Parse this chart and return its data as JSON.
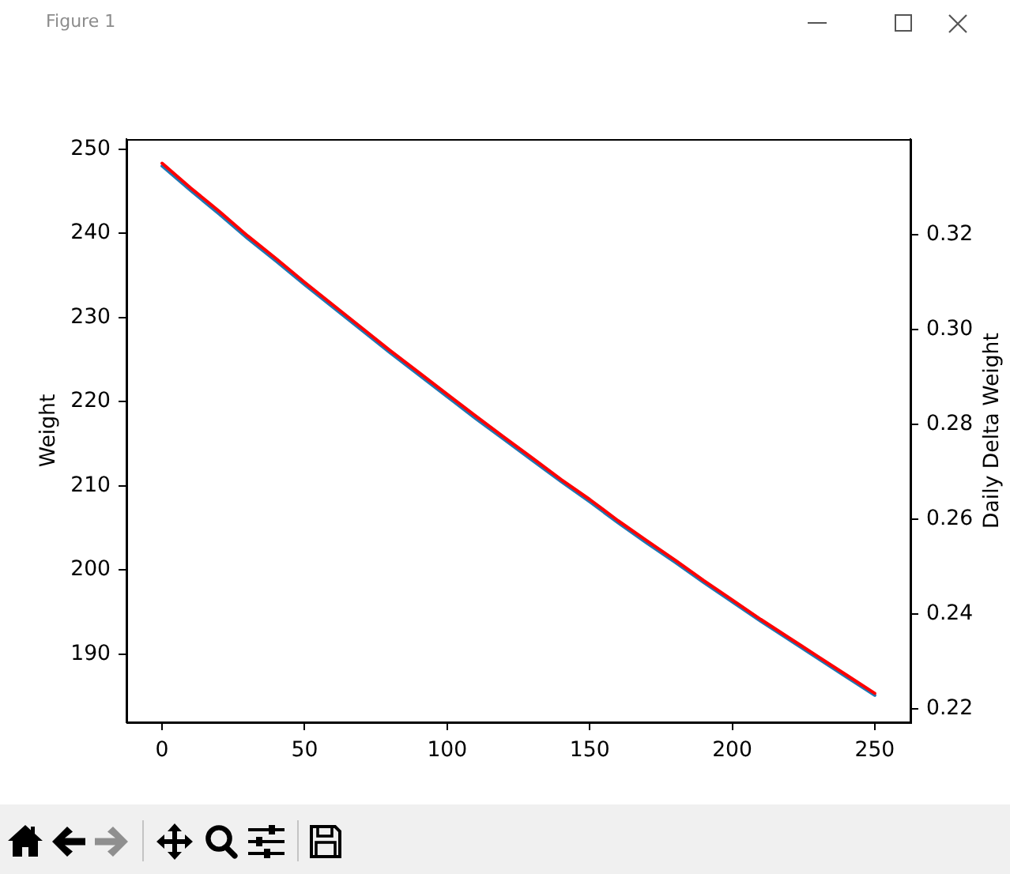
{
  "chart_data": {
    "type": "line",
    "ylabel": "Weight",
    "y2label": "Daily Delta Weight",
    "annotations": [
      "Figure 1"
    ],
    "x": [
      0,
      10,
      20,
      30,
      40,
      50,
      60,
      70,
      80,
      90,
      100,
      110,
      120,
      130,
      140,
      150,
      160,
      170,
      180,
      190,
      200,
      210,
      220,
      230,
      240,
      250
    ],
    "xlim": [
      -12.5,
      262.5
    ],
    "xticks": [
      0,
      50,
      100,
      150,
      200,
      250
    ],
    "ylim": [
      181.9,
      251.2
    ],
    "yticks": [
      190,
      200,
      210,
      220,
      230,
      240,
      250
    ],
    "y2lim": [
      0.2172,
      0.3402
    ],
    "y2ticks": [
      0.22,
      0.24,
      0.26,
      0.28,
      {
        "value": 0.3,
        "label": "0.30"
      },
      0.32
    ],
    "series": [
      {
        "color": "#1f77b4",
        "values": [
          248,
          245.1,
          242.3,
          239.4,
          236.7,
          233.9,
          231.2,
          228.5,
          225.8,
          223.2,
          220.6,
          218,
          215.5,
          213,
          210.5,
          208.1,
          205.6,
          203.2,
          200.9,
          198.5,
          196.2,
          193.9,
          191.7,
          189.5,
          187.3,
          185.1
        ]
      },
      {
        "color": "#ff0000",
        "axis": "y2",
        "values": [
          0.3351,
          0.3299,
          0.325,
          0.3198,
          0.315,
          0.31,
          0.3052,
          0.3004,
          0.2956,
          0.291,
          0.2864,
          0.2818,
          0.2773,
          0.2729,
          0.2684,
          0.2642,
          0.2597,
          0.2555,
          0.2514,
          0.2471,
          0.243,
          0.2389,
          0.235,
          0.2311,
          0.2272,
          0.2233
        ]
      }
    ]
  }
}
